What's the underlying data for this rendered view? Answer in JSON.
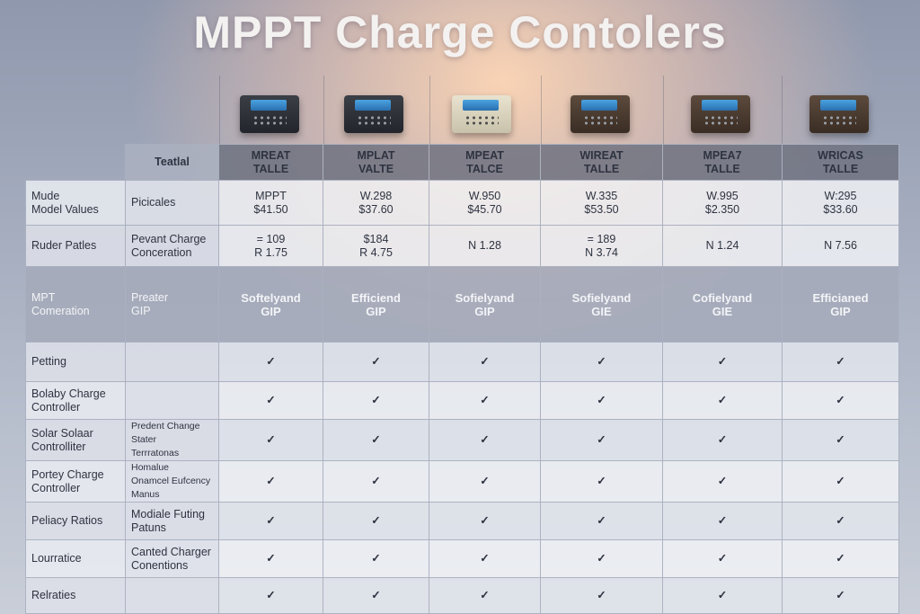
{
  "title": "MPPT Charge Contolers",
  "columns": [
    {
      "header": [
        "MREAT",
        "TALLE"
      ],
      "device": "dark"
    },
    {
      "header": [
        "MPLAT",
        "VALTE"
      ],
      "device": "dark"
    },
    {
      "header": [
        "MPEAT",
        "TALCE"
      ],
      "device": "light"
    },
    {
      "header": [
        "WIREAT",
        "TALLE"
      ],
      "device": "brown"
    },
    {
      "header": [
        "MPEA7",
        "TALLE"
      ],
      "device": "brown"
    },
    {
      "header": [
        "WRICAS",
        "TALLE"
      ],
      "device": "brown"
    }
  ],
  "header_label": "Teatlal",
  "rows": [
    {
      "label": [
        "Mude",
        "Model Values"
      ],
      "sub": [
        "Picicales"
      ],
      "type": "values",
      "values": [
        [
          "MPPT",
          "$41.50"
        ],
        [
          "W.298",
          "$37.60"
        ],
        [
          "W.950",
          "$45.70"
        ],
        [
          "W.335",
          "$53.50"
        ],
        [
          "W.995",
          "$2.350"
        ],
        [
          "W:295",
          "$33.60"
        ]
      ]
    },
    {
      "label": [
        "Ruder Patles"
      ],
      "sub": [
        "Pevant Charge",
        "Conceration"
      ],
      "type": "values",
      "values": [
        [
          "= 109",
          "R 1.75"
        ],
        [
          "$184",
          "R 4.75"
        ],
        [
          "N 1.28"
        ],
        [
          "= 189",
          "N 3.74"
        ],
        [
          "N 1.24"
        ],
        [
          "N 7.56"
        ]
      ]
    },
    {
      "label": [
        "MPT",
        "Comeration"
      ],
      "sub": [
        "Preater",
        "GIP"
      ],
      "type": "dark",
      "values": [
        [
          "Softelyand",
          "GIP"
        ],
        [
          "Efficiend",
          "GIP"
        ],
        [
          "Sofielyand",
          "GIP"
        ],
        [
          "Sofielyand",
          "GIE"
        ],
        [
          "Cofielyand",
          "GIE"
        ],
        [
          "Efficianed",
          "GIP"
        ]
      ]
    },
    {
      "label": [
        "Petting"
      ],
      "sub": [],
      "type": "check"
    },
    {
      "label": [
        "Bolaby Charge",
        "Controller"
      ],
      "sub": [],
      "type": "check"
    },
    {
      "label": [
        "Solar Solaar",
        "Controlliter"
      ],
      "sub": [
        "Predent Change",
        "Stater",
        "Terrratonas"
      ],
      "type": "check"
    },
    {
      "label": [
        "Portey Charge",
        "Controller"
      ],
      "sub": [
        "Homalue",
        "Onamcel Eufcency",
        "Manus"
      ],
      "type": "check"
    },
    {
      "label": [
        "Peliacy Ratios"
      ],
      "sub": [
        "Modiale Futing",
        "Patuns"
      ],
      "type": "check"
    },
    {
      "label": [
        "Lourratice"
      ],
      "sub": [
        "Canted Charger",
        "Conentions"
      ],
      "type": "check"
    },
    {
      "label": [
        "Relraties"
      ],
      "sub": [],
      "type": "check"
    }
  ],
  "check_glyph": "✓",
  "colors": {
    "check": "#2e8b3e",
    "header": "#6e7280"
  }
}
